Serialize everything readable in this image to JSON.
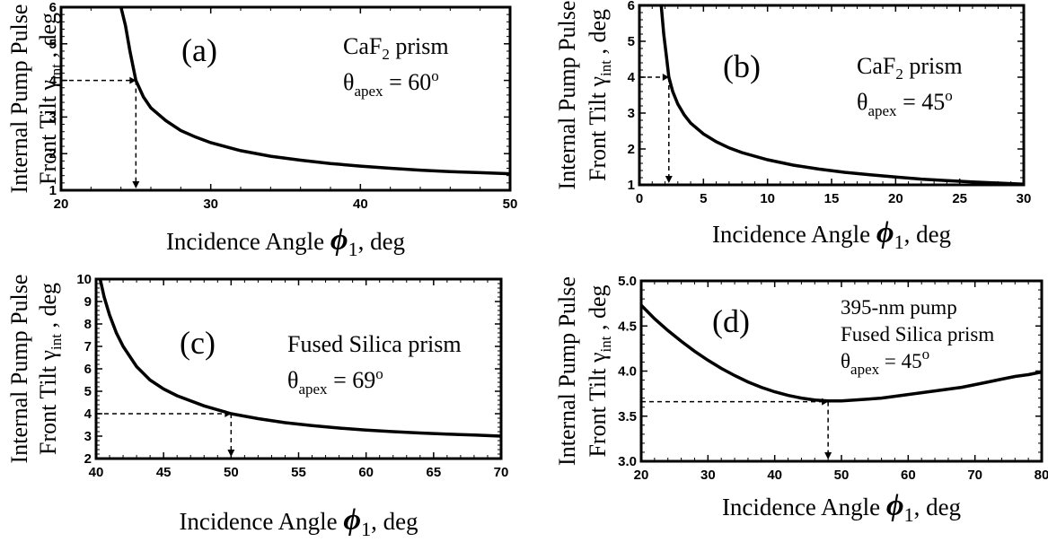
{
  "chart_data": [
    {
      "type": "line",
      "panel_label": "(a)",
      "ylabel_line1": "Internal Pump Pulse",
      "ylabel_line2_prefix": "Front Tilt γ",
      "ylabel_subscript": "int",
      "ylabel_suffix": " , deg",
      "xlabel_prefix": "Incidence Angle ",
      "xlabel_symbol": "ϕ",
      "xlabel_subscript": "1",
      "xlabel_suffix": ", deg",
      "annotation_line1_prefix": "CaF",
      "annotation_line1_sub": "2",
      "annotation_line1_suffix": " prism",
      "annotation_line2_prefix": "θ",
      "annotation_line2_sub": "apex",
      "annotation_line2_value": " = 60",
      "annotation_line2_degree": "o",
      "xlim": [
        20,
        50
      ],
      "ylim": [
        1,
        6
      ],
      "xticks": [
        20,
        30,
        40,
        50
      ],
      "yticks": [
        1,
        2,
        3,
        4,
        5,
        6
      ],
      "series": [
        {
          "x": [
            24.0,
            24.3,
            24.6,
            25.0,
            25.5,
            26.0,
            27.0,
            28.0,
            29.0,
            30.0,
            32.0,
            34.0,
            36.0,
            38.0,
            40.0,
            42.0,
            44.0,
            46.0,
            48.0,
            50.0
          ],
          "y": [
            6.0,
            5.5,
            4.8,
            4.0,
            3.55,
            3.25,
            2.9,
            2.63,
            2.45,
            2.3,
            2.08,
            1.93,
            1.82,
            1.73,
            1.66,
            1.6,
            1.55,
            1.51,
            1.48,
            1.45
          ]
        }
      ],
      "marker": {
        "x": 25.0,
        "y": 4.0
      }
    },
    {
      "type": "line",
      "panel_label": "(b)",
      "ylabel_line1": "Internal Pump Pulse",
      "ylabel_line2_prefix": "Front Tilt γ",
      "ylabel_subscript": "int",
      "ylabel_suffix": " , deg",
      "xlabel_prefix": "Incidence Angle ",
      "xlabel_symbol": "ϕ",
      "xlabel_subscript": "1",
      "xlabel_suffix": ", deg",
      "annotation_line1_prefix": "CaF",
      "annotation_line1_sub": "2",
      "annotation_line1_suffix": " prism",
      "annotation_line2_prefix": "θ",
      "annotation_line2_sub": "apex",
      "annotation_line2_value": " = 45",
      "annotation_line2_degree": "o",
      "xlim": [
        0,
        30
      ],
      "ylim": [
        1,
        6
      ],
      "xticks": [
        0,
        5,
        10,
        15,
        20,
        25,
        30
      ],
      "yticks": [
        1,
        2,
        3,
        4,
        5,
        6
      ],
      "series": [
        {
          "x": [
            1.7,
            1.9,
            2.1,
            2.3,
            2.6,
            3.0,
            3.5,
            4.0,
            5.0,
            6.0,
            7.0,
            8.0,
            10.0,
            12.0,
            14.0,
            16.0,
            18.0,
            20.0,
            22.0,
            24.0,
            26.0,
            28.0,
            30.0
          ],
          "y": [
            6.0,
            5.2,
            4.6,
            4.0,
            3.6,
            3.25,
            2.95,
            2.72,
            2.42,
            2.2,
            2.03,
            1.9,
            1.7,
            1.55,
            1.44,
            1.35,
            1.28,
            1.22,
            1.16,
            1.12,
            1.08,
            1.05,
            1.02
          ]
        }
      ],
      "marker": {
        "x": 2.3,
        "y": 4.0
      }
    },
    {
      "type": "line",
      "panel_label": "(c)",
      "ylabel_line1": "Internal Pump Pulse",
      "ylabel_line2_prefix": "Front Tilt γ",
      "ylabel_subscript": "int",
      "ylabel_suffix": " , deg",
      "xlabel_prefix": "Incidence Angle ",
      "xlabel_symbol": "ϕ",
      "xlabel_subscript": "1",
      "xlabel_suffix": ", deg",
      "annotation_line1_prefix": "Fused Silica prism",
      "annotation_line1_sub": "",
      "annotation_line1_suffix": "",
      "annotation_line2_prefix": "θ",
      "annotation_line2_sub": "apex",
      "annotation_line2_value": " = 69",
      "annotation_line2_degree": "o",
      "xlim": [
        40,
        70
      ],
      "ylim": [
        2,
        10
      ],
      "xticks": [
        40,
        45,
        50,
        55,
        60,
        65,
        70
      ],
      "yticks": [
        2,
        3,
        4,
        5,
        6,
        7,
        8,
        9,
        10
      ],
      "series": [
        {
          "x": [
            40.3,
            40.6,
            41.0,
            41.5,
            42.0,
            43.0,
            44.0,
            45.0,
            46.0,
            48.0,
            50.0,
            52.0,
            54.0,
            56.0,
            58.0,
            60.0,
            62.0,
            64.0,
            66.0,
            68.0,
            70.0
          ],
          "y": [
            10.0,
            9.2,
            8.4,
            7.6,
            7.0,
            6.1,
            5.5,
            5.1,
            4.8,
            4.35,
            4.0,
            3.78,
            3.6,
            3.47,
            3.36,
            3.27,
            3.2,
            3.14,
            3.09,
            3.05,
            3.0
          ]
        }
      ],
      "marker": {
        "x": 50.0,
        "y": 4.0
      }
    },
    {
      "type": "line",
      "panel_label": "(d)",
      "ylabel_line1": "Internal Pump Pulse",
      "ylabel_line2_prefix": "Front Tilt γ",
      "ylabel_subscript": "int",
      "ylabel_suffix": " , deg",
      "xlabel_prefix": "Incidence Angle ",
      "xlabel_symbol": "ϕ",
      "xlabel_subscript": "1",
      "xlabel_suffix": ", deg",
      "annotation_line0": "395-nm pump",
      "annotation_line1_prefix": "Fused Silica prism",
      "annotation_line1_sub": "",
      "annotation_line1_suffix": "",
      "annotation_line2_prefix": "θ",
      "annotation_line2_sub": "apex",
      "annotation_line2_value": " = 45",
      "annotation_line2_degree": "o",
      "xlim": [
        20,
        80
      ],
      "ylim": [
        3.0,
        5.0
      ],
      "xticks": [
        20,
        30,
        40,
        50,
        60,
        70,
        80
      ],
      "yticks": [
        3.0,
        3.5,
        4.0,
        4.5,
        5.0
      ],
      "ytick_format": "fixed1",
      "series": [
        {
          "x": [
            20,
            22,
            24,
            26,
            28,
            30,
            32,
            34,
            36,
            38,
            40,
            42,
            44,
            46,
            48,
            50,
            52,
            54,
            56,
            58,
            60,
            62,
            64,
            66,
            68,
            70,
            72,
            74,
            76,
            78,
            80
          ],
          "y": [
            4.73,
            4.58,
            4.45,
            4.33,
            4.22,
            4.12,
            4.03,
            3.95,
            3.88,
            3.82,
            3.77,
            3.73,
            3.7,
            3.68,
            3.67,
            3.67,
            3.68,
            3.69,
            3.7,
            3.72,
            3.74,
            3.76,
            3.78,
            3.8,
            3.82,
            3.85,
            3.88,
            3.91,
            3.94,
            3.96,
            3.99
          ]
        }
      ],
      "marker": {
        "x": 48.0,
        "y": 3.66
      }
    }
  ]
}
